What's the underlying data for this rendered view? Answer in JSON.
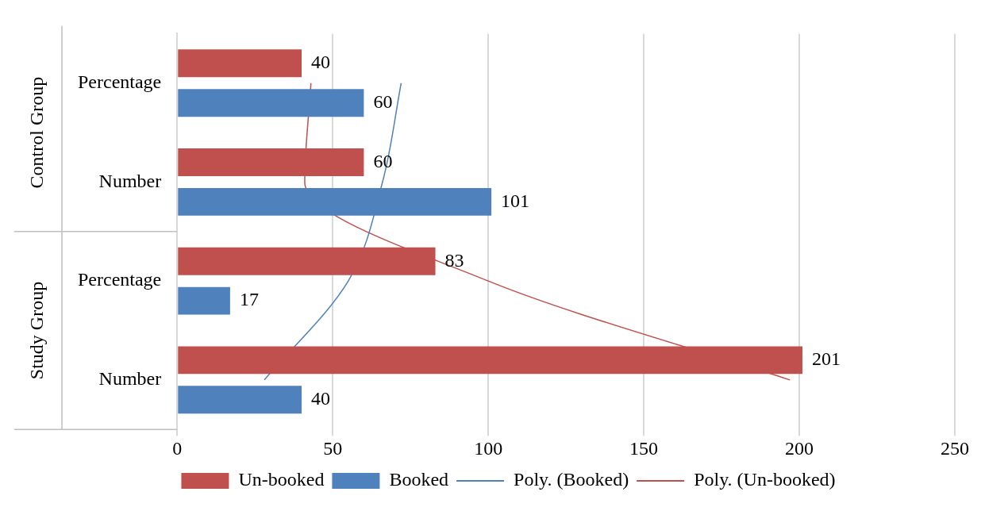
{
  "chart_data": {
    "type": "bar",
    "orientation": "horizontal",
    "categories": [
      "Percentage",
      "Number",
      "Percentage",
      "Number"
    ],
    "series": [
      {
        "name": "Un-booked",
        "color": "#c0504d",
        "values": [
          40,
          60,
          83,
          201
        ],
        "value_labels": [
          "40",
          "60",
          "83",
          "201"
        ]
      },
      {
        "name": "Booked",
        "color": "#4f81bd",
        "values": [
          60,
          101,
          17,
          40
        ],
        "value_labels": [
          "60",
          "101",
          "17",
          "40"
        ]
      },
      {
        "name": "Poly. (Booked)",
        "type": "line",
        "color": "#4f81bd",
        "values": [
          72,
          66,
          55,
          28
        ]
      },
      {
        "name": "Poly. (Un-booked)",
        "type": "line",
        "color": "#c0504d",
        "values": [
          43,
          41,
          100,
          197
        ]
      }
    ],
    "annotations": [
      "Control Group",
      "Study Group"
    ],
    "xlim": [
      0,
      250
    ],
    "xticks": [
      0,
      50,
      100,
      150,
      200,
      250
    ],
    "grid": "x",
    "legend": "bottom",
    "marker": "none",
    "line_style": "solid"
  }
}
